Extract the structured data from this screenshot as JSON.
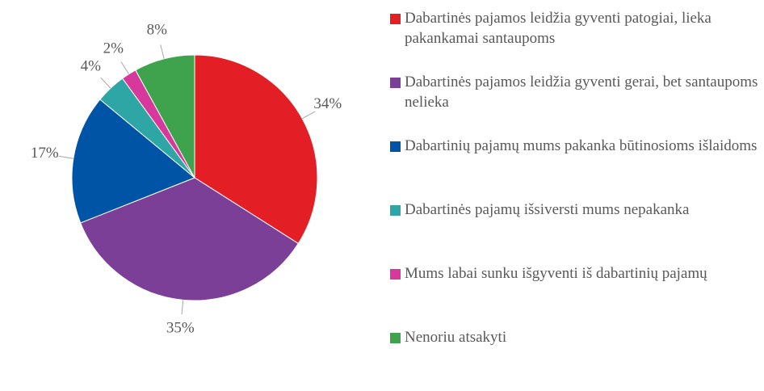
{
  "chart_data": {
    "type": "pie",
    "categories": [
      "Dabartinės pajamos leidžia gyventi patogiai, lieka pakankamai santaupoms",
      "Dabartinės pajamos leidžia gyventi gerai, bet santaupoms nelieka",
      "Dabartinių pajamų mums pakanka būtinosioms išlaidoms",
      "Dabartinės pajamų išsiversti mums nepakanka",
      "Mums labai sunku išgyventi iš dabartinių pajamų",
      "Nenoriu atsakyti"
    ],
    "values": [
      34,
      35,
      17,
      4,
      2,
      8
    ],
    "value_labels": [
      "34%",
      "35%",
      "17%",
      "4%",
      "2%",
      "8%"
    ],
    "colors": [
      "#e31e24",
      "#7b3f98",
      "#0054a6",
      "#2ea6a6",
      "#d6399b",
      "#3fa34d"
    ],
    "legend": "right"
  }
}
